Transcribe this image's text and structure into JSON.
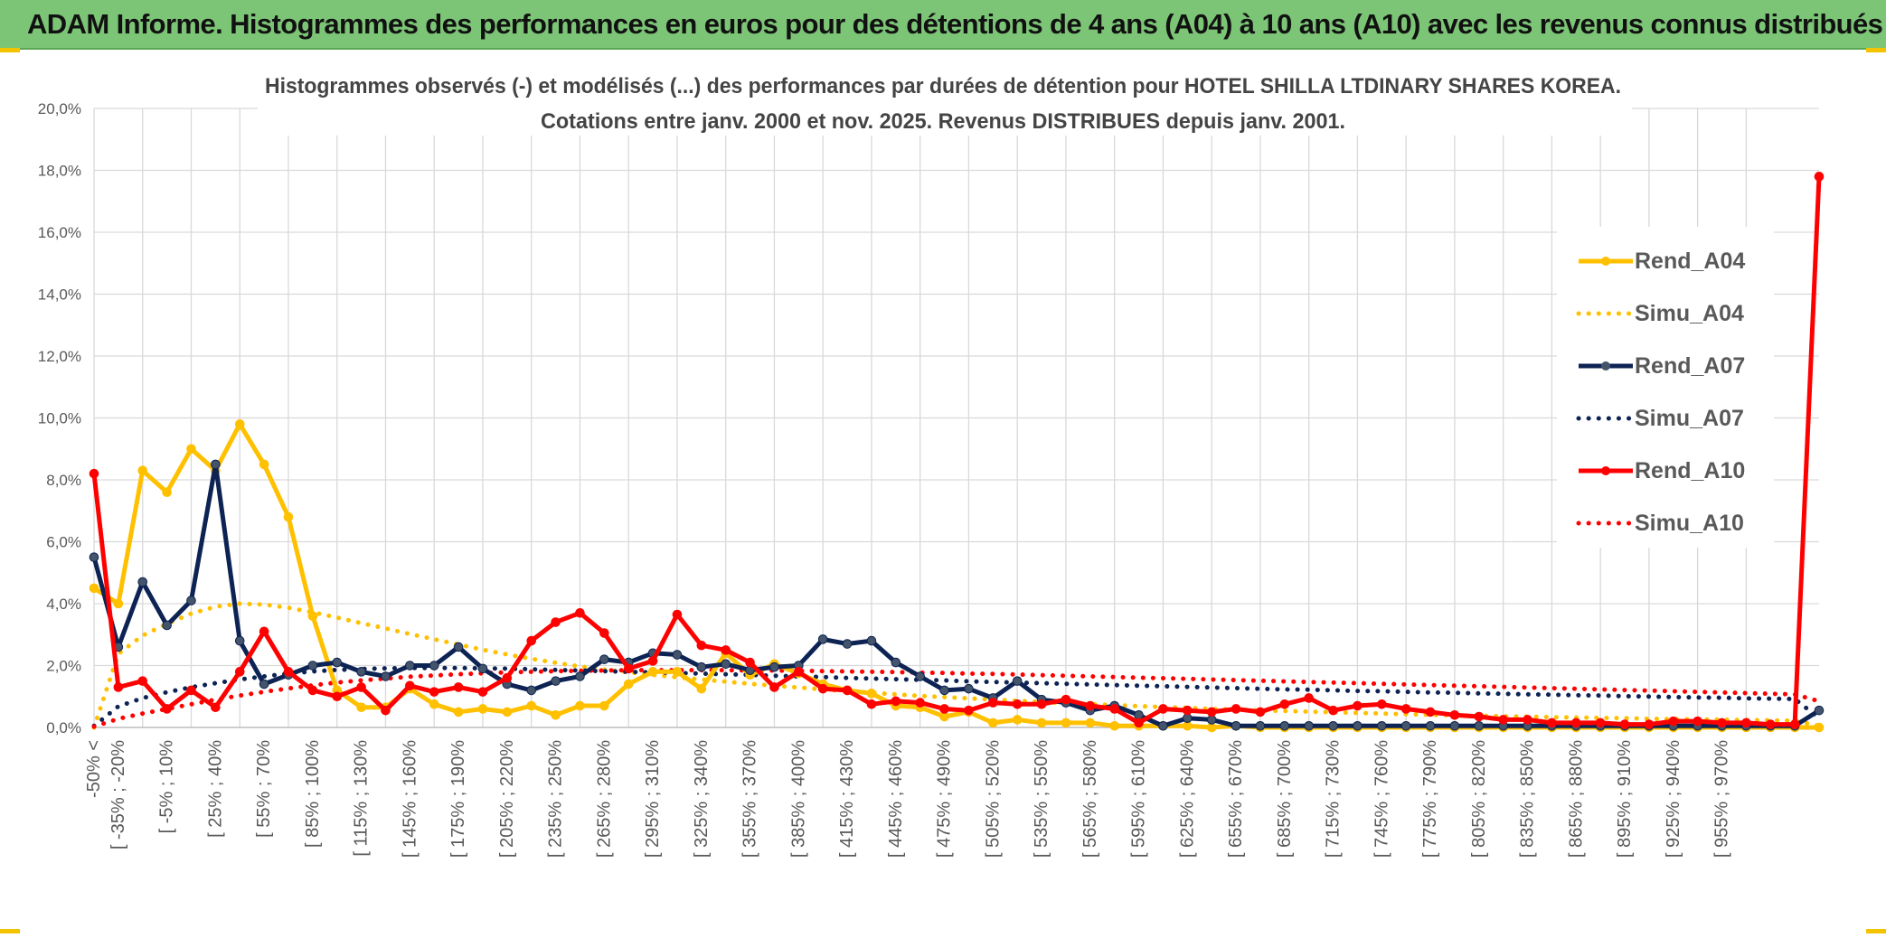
{
  "header": {
    "title": "ADAM Informe. Histogrammes des performances en euros pour des détentions de 4 ans (A04) à 10 ans (A10) avec les revenus connus distribués"
  },
  "chart_data": {
    "type": "line",
    "title_line1": "Histogrammes observés (-) et modélisés (...) des performances par durées de détention pour HOTEL SHILLA LTDINARY SHARES KOREA.",
    "title_line2": "Cotations entre janv. 2000 et nov. 2025. Revenus DISTRIBUES depuis janv. 2001.",
    "ylim": [
      0,
      20
    ],
    "yticks": [
      "0,0%",
      "2,0%",
      "4,0%",
      "6,0%",
      "8,0%",
      "10,0%",
      "12,0%",
      "14,0%",
      "16,0%",
      "18,0%",
      "20,0%"
    ],
    "grid": true,
    "legend_position": "right",
    "x_labels": [
      "-50% <",
      "[ -35% ; -20%",
      "[ -5% ; 10%",
      "[ 25% ; 40%",
      "[ 55% ; 70%",
      "[ 85% ; 100%",
      "[ 115% ; 130%",
      "[ 145% ; 160%",
      "[ 175% ; 190%",
      "[ 205% ; 220%",
      "[ 235% ; 250%",
      "[ 265% ; 280%",
      "[ 295% ; 310%",
      "[ 325% ; 340%",
      "[ 355% ; 370%",
      "[ 385% ; 400%",
      "[ 415% ; 430%",
      "[ 445% ; 460%",
      "[ 475% ; 490%",
      "[ 505% ; 520%",
      "[ 535% ; 550%",
      "[ 565% ; 580%",
      "[ 595% ; 610%",
      "[ 625% ; 640%",
      "[ 655% ; 670%",
      "[ 685% ; 700%",
      "[ 715% ; 730%",
      "[ 745% ; 760%",
      "[ 775% ; 790%",
      "[ 805% ; 820%",
      "[ 835% ; 850%",
      "[ 865% ; 880%",
      "[ 895% ; 910%",
      "[ 925% ; 940%",
      "[ 955% ; 970%"
    ],
    "series": [
      {
        "name": "Rend_A04",
        "style": "solid",
        "color": "#ffc000",
        "values": [
          4.5,
          4.0,
          8.3,
          7.6,
          9.0,
          8.3,
          9.8,
          8.5,
          6.8,
          3.6,
          1.2,
          0.65,
          0.65,
          1.25,
          0.75,
          0.5,
          0.6,
          0.5,
          0.7,
          0.4,
          0.7,
          0.7,
          1.4,
          1.8,
          1.8,
          1.25,
          2.4,
          1.7,
          2.05,
          1.75,
          1.4,
          1.2,
          1.1,
          0.7,
          0.65,
          0.35,
          0.5,
          0.15,
          0.25,
          0.15,
          0.15,
          0.15,
          0.05,
          0.05,
          0.05,
          0.05,
          0.0,
          0.05,
          0.0,
          0.0,
          0.0,
          0.0,
          0.0,
          0.0,
          0.0,
          0.0,
          0.0,
          0.0,
          0.0,
          0.0,
          0.0,
          0.0,
          0.0,
          0.0,
          0.0,
          0.0,
          0.0,
          0.0,
          0.0,
          0.0,
          0.0,
          0.0
        ]
      },
      {
        "name": "Simu_A04",
        "style": "dotted",
        "color": "#ffc000",
        "values": [
          0.0,
          2.38,
          2.97,
          3.35,
          3.68,
          3.9,
          4.0,
          3.97,
          3.87,
          3.72,
          3.55,
          3.37,
          3.2,
          3.02,
          2.85,
          2.68,
          2.51,
          2.36,
          2.22,
          2.09,
          1.97,
          1.87,
          1.78,
          1.7,
          1.62,
          1.55,
          1.48,
          1.41,
          1.35,
          1.29,
          1.23,
          1.17,
          1.12,
          1.07,
          1.02,
          0.98,
          0.94,
          0.9,
          0.86,
          0.82,
          0.78,
          0.75,
          0.72,
          0.69,
          0.66,
          0.63,
          0.6,
          0.58,
          0.55,
          0.53,
          0.51,
          0.49,
          0.47,
          0.45,
          0.43,
          0.41,
          0.39,
          0.38,
          0.36,
          0.35,
          0.33,
          0.32,
          0.31,
          0.3,
          0.28,
          0.27,
          0.26,
          0.25,
          0.24,
          0.23,
          0.22,
          0.05
        ]
      },
      {
        "name": "Rend_A07",
        "style": "solid",
        "color": "#0d2354",
        "values": [
          5.5,
          2.6,
          4.7,
          3.3,
          4.1,
          8.5,
          2.8,
          1.4,
          1.7,
          2.0,
          2.1,
          1.8,
          1.65,
          2.0,
          2.0,
          2.6,
          1.9,
          1.4,
          1.2,
          1.5,
          1.65,
          2.2,
          2.1,
          2.4,
          2.35,
          1.95,
          2.05,
          1.85,
          1.95,
          2.0,
          2.85,
          2.7,
          2.8,
          2.1,
          1.65,
          1.2,
          1.25,
          0.95,
          1.5,
          0.9,
          0.8,
          0.55,
          0.7,
          0.4,
          0.05,
          0.3,
          0.25,
          0.05,
          0.05,
          0.05,
          0.05,
          0.05,
          0.05,
          0.05,
          0.05,
          0.05,
          0.05,
          0.05,
          0.05,
          0.05,
          0.05,
          0.05,
          0.05,
          0.05,
          0.05,
          0.05,
          0.05,
          0.05,
          0.05,
          0.05,
          0.05,
          0.55
        ]
      },
      {
        "name": "Simu_A07",
        "style": "dotted",
        "color": "#0d2354",
        "values": [
          0.05,
          0.68,
          0.95,
          1.14,
          1.3,
          1.43,
          1.55,
          1.65,
          1.74,
          1.81,
          1.86,
          1.89,
          1.91,
          1.92,
          1.92,
          1.92,
          1.91,
          1.9,
          1.88,
          1.86,
          1.84,
          1.82,
          1.8,
          1.78,
          1.76,
          1.74,
          1.72,
          1.7,
          1.67,
          1.65,
          1.63,
          1.6,
          1.58,
          1.56,
          1.54,
          1.52,
          1.49,
          1.47,
          1.45,
          1.43,
          1.41,
          1.39,
          1.37,
          1.35,
          1.33,
          1.31,
          1.29,
          1.27,
          1.25,
          1.23,
          1.22,
          1.2,
          1.18,
          1.17,
          1.15,
          1.13,
          1.12,
          1.1,
          1.09,
          1.07,
          1.06,
          1.04,
          1.03,
          1.01,
          1.0,
          0.98,
          0.97,
          0.96,
          0.94,
          0.93,
          0.92,
          0.3
        ]
      },
      {
        "name": "Rend_A10",
        "style": "solid",
        "color": "#ff0000",
        "values": [
          8.2,
          1.3,
          1.5,
          0.6,
          1.2,
          0.65,
          1.8,
          3.1,
          1.8,
          1.2,
          1.0,
          1.3,
          0.55,
          1.35,
          1.15,
          1.3,
          1.15,
          1.6,
          2.8,
          3.4,
          3.7,
          3.05,
          1.9,
          2.15,
          3.65,
          2.65,
          2.5,
          2.1,
          1.3,
          1.8,
          1.25,
          1.2,
          0.75,
          0.85,
          0.8,
          0.6,
          0.55,
          0.8,
          0.75,
          0.75,
          0.9,
          0.7,
          0.6,
          0.15,
          0.6,
          0.55,
          0.5,
          0.6,
          0.5,
          0.75,
          0.95,
          0.55,
          0.7,
          0.75,
          0.6,
          0.5,
          0.4,
          0.35,
          0.25,
          0.25,
          0.15,
          0.15,
          0.15,
          0.1,
          0.1,
          0.2,
          0.2,
          0.15,
          0.15,
          0.1,
          0.1,
          17.8
        ]
      },
      {
        "name": "Simu_A10",
        "style": "dotted",
        "color": "#ff0000",
        "values": [
          0.03,
          0.28,
          0.45,
          0.6,
          0.75,
          0.9,
          1.03,
          1.15,
          1.26,
          1.36,
          1.45,
          1.52,
          1.58,
          1.64,
          1.68,
          1.72,
          1.75,
          1.78,
          1.8,
          1.82,
          1.83,
          1.84,
          1.85,
          1.85,
          1.85,
          1.85,
          1.85,
          1.84,
          1.84,
          1.83,
          1.82,
          1.81,
          1.8,
          1.79,
          1.77,
          1.76,
          1.74,
          1.73,
          1.71,
          1.69,
          1.67,
          1.65,
          1.63,
          1.61,
          1.59,
          1.57,
          1.55,
          1.53,
          1.51,
          1.49,
          1.47,
          1.45,
          1.43,
          1.41,
          1.39,
          1.37,
          1.35,
          1.33,
          1.31,
          1.29,
          1.27,
          1.25,
          1.23,
          1.21,
          1.19,
          1.17,
          1.15,
          1.13,
          1.11,
          1.09,
          1.07,
          0.85
        ]
      }
    ]
  }
}
